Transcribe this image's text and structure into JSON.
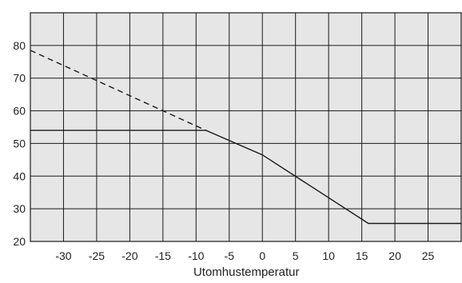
{
  "chart_data": {
    "type": "line",
    "xlabel": "Utomhustemperatur",
    "ylabel": "",
    "title": "",
    "xlim": [
      -35,
      30
    ],
    "ylim": [
      20,
      90
    ],
    "x_ticks": [
      "-30",
      "-25",
      "-20",
      "-15",
      "-10",
      "-5",
      "0",
      "5",
      "10",
      "15",
      "20",
      "25"
    ],
    "y_ticks": [
      "80",
      "70",
      "60",
      "50",
      "40",
      "30",
      "20"
    ],
    "x_grid": [
      -30,
      -25,
      -20,
      -15,
      -10,
      -5,
      0,
      5,
      10,
      15,
      20,
      25
    ],
    "y_grid": [
      30,
      40,
      50,
      60,
      70,
      80
    ],
    "grid": true,
    "series": [
      {
        "style": "solid",
        "color": "#1a1a1a",
        "points": [
          [
            -35,
            54
          ],
          [
            -8.5,
            54
          ],
          [
            0,
            46.5
          ],
          [
            16,
            25.5
          ],
          [
            30,
            25.5
          ]
        ]
      },
      {
        "style": "dashed",
        "color": "#1a1a1a",
        "points": [
          [
            -35,
            78.5
          ],
          [
            -8.5,
            54
          ]
        ]
      }
    ],
    "colors": {
      "background": "#e6e6e6",
      "grid": "#1a1a1a",
      "line": "#1a1a1a"
    }
  }
}
